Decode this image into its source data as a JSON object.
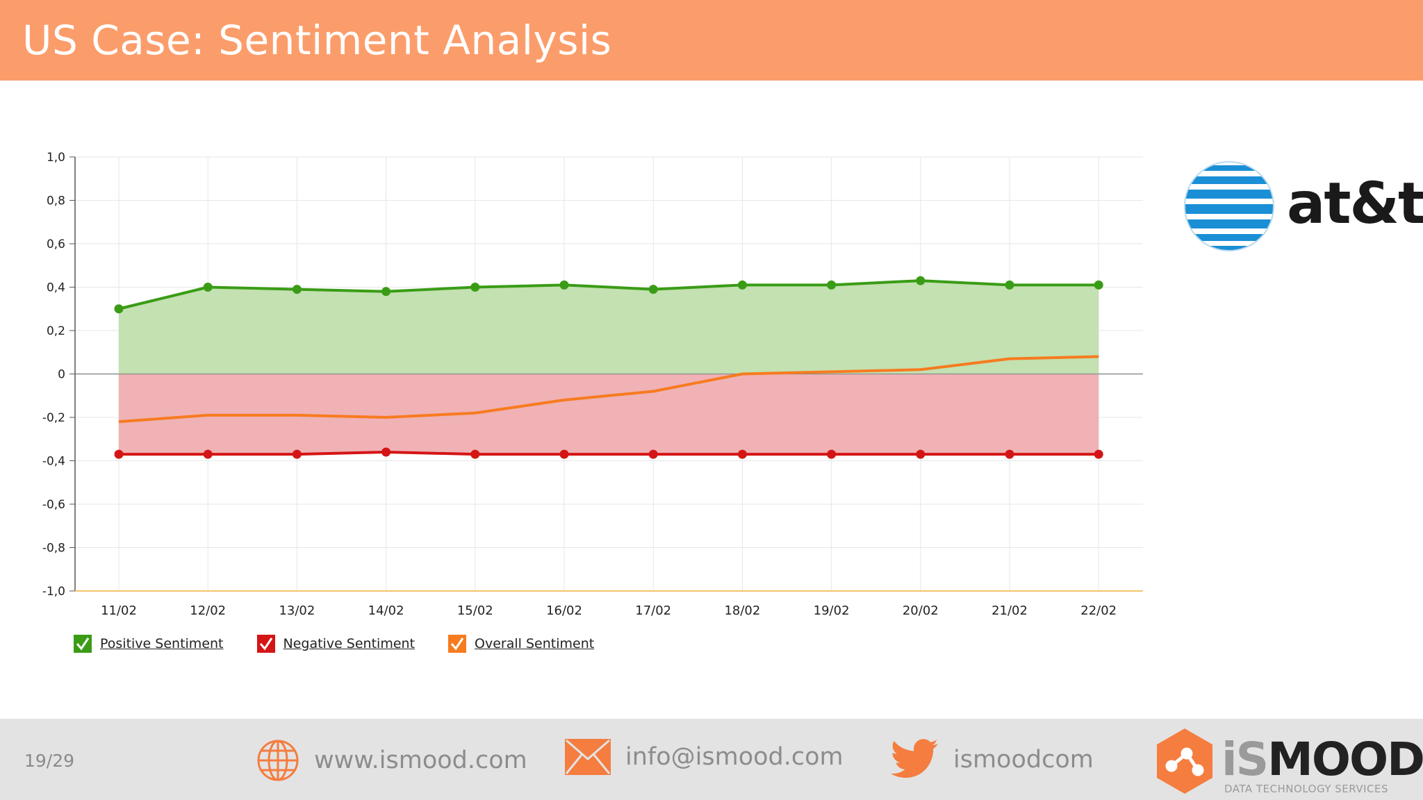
{
  "slide": {
    "title": "US Case: Sentiment Analysis",
    "page_number": "19/29"
  },
  "brand_logo": {
    "text": "at&t"
  },
  "footer": {
    "website": "www.ismood.com",
    "email": "info@ismood.com",
    "twitter": "ismoodcom",
    "brand_name_part1": "iS",
    "brand_name_part2": "MOOD",
    "brand_tagline": "DATA TECHNOLOGY SERVICES"
  },
  "colors": {
    "header": "#fb9d6b",
    "positive": "#3a9c16",
    "negative": "#d41515",
    "overall": "#f77b1f",
    "positive_fill": "#c3e1b1",
    "negative_fill": "#f0b2b5",
    "accent_icon": "#f47d3f"
  },
  "chart_data": {
    "type": "line",
    "categories": [
      "11/02",
      "12/02",
      "13/02",
      "14/02",
      "15/02",
      "16/02",
      "17/02",
      "18/02",
      "19/02",
      "20/02",
      "21/02",
      "22/02"
    ],
    "series": [
      {
        "name": "Positive Sentiment",
        "values": [
          0.3,
          0.4,
          0.39,
          0.38,
          0.4,
          0.41,
          0.39,
          0.41,
          0.41,
          0.43,
          0.41,
          0.41
        ]
      },
      {
        "name": "Negative Sentiment",
        "values": [
          -0.37,
          -0.37,
          -0.37,
          -0.36,
          -0.37,
          -0.37,
          -0.37,
          -0.37,
          -0.37,
          -0.37,
          -0.37,
          -0.37
        ]
      },
      {
        "name": "Overall Sentiment",
        "values": [
          -0.22,
          -0.19,
          -0.19,
          -0.2,
          -0.18,
          -0.12,
          -0.08,
          0.0,
          0.01,
          0.02,
          0.07,
          0.08
        ]
      }
    ],
    "y_ticks": [
      "1,0",
      "0,8",
      "0,6",
      "0,4",
      "0,2",
      "0",
      "-0,2",
      "-0,4",
      "-0,6",
      "-0,8",
      "-1,0"
    ],
    "ylim": [
      -1.0,
      1.0
    ],
    "grid": true,
    "legend_position": "bottom-left"
  }
}
